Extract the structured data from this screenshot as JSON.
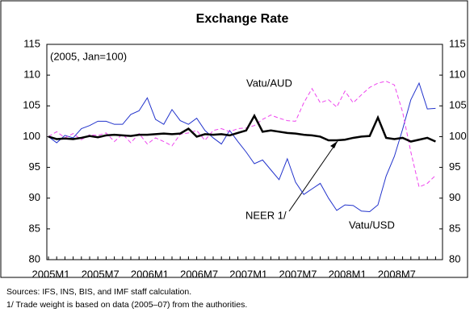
{
  "chart_data": {
    "type": "line",
    "title": "Exchange Rate",
    "subtitle": "(2005, Jan=100)",
    "categories": [
      "2005M1",
      null,
      null,
      null,
      null,
      null,
      "2005M7",
      null,
      null,
      null,
      null,
      null,
      "2006M1",
      null,
      null,
      null,
      null,
      null,
      "2006M7",
      null,
      null,
      null,
      null,
      null,
      "2007M1",
      null,
      null,
      null,
      null,
      null,
      "2007M7",
      null,
      null,
      null,
      null,
      null,
      "2008M1",
      null,
      null,
      null,
      null,
      null,
      "2008M7",
      null,
      null,
      null,
      null,
      null
    ],
    "series": [
      {
        "name": "Vatu/USD",
        "color": "#2233cc",
        "dash": false,
        "width": 1,
        "values": [
          100,
          99,
          100.2,
          99.8,
          101.3,
          101.8,
          102.5,
          102.5,
          102,
          102,
          103.6,
          104.2,
          106.3,
          102.8,
          102,
          104.4,
          102.6,
          102,
          103,
          101,
          99.8,
          98.8,
          101,
          99.2,
          97.5,
          95.6,
          96.2,
          94.6,
          93,
          96.4,
          92.6,
          90.6,
          91.5,
          92.4,
          90,
          88,
          88.9,
          88.8,
          87.9,
          87.8,
          88.9,
          93.6,
          96.8,
          101.2,
          106,
          108.7,
          104.5,
          104.6
        ]
      },
      {
        "name": "Vatu/AUD",
        "color": "#ee44ee",
        "dash": true,
        "width": 1,
        "values": [
          100,
          100.8,
          99.8,
          100.5,
          99.5,
          100.3,
          100.2,
          100.6,
          99.2,
          100.4,
          99,
          100.5,
          98.8,
          99.8,
          99.2,
          98.5,
          100.4,
          100.6,
          101,
          99.4,
          101,
          101.3,
          100.8,
          101.3,
          101.4,
          101.8,
          102.8,
          103.5,
          103,
          102.6,
          102.5,
          105.5,
          107.8,
          105.5,
          106,
          104.8,
          107.4,
          105.5,
          106.8,
          108,
          108.7,
          109,
          108.4,
          104,
          97.5,
          91.8,
          92.4,
          93.7
        ]
      },
      {
        "name": "NEER 1/",
        "color": "#000000",
        "dash": false,
        "width": 2.5,
        "values": [
          100,
          99.6,
          99.7,
          99.6,
          99.8,
          100.1,
          99.9,
          100.2,
          100.3,
          100.2,
          100.1,
          100.3,
          100.3,
          100.4,
          100.5,
          100.4,
          100.5,
          101.3,
          100,
          100.4,
          100.3,
          100.4,
          100.2,
          100.6,
          101,
          103.4,
          100.8,
          101,
          100.8,
          100.6,
          100.5,
          100.3,
          100.2,
          100,
          99.4,
          99.4,
          99.5,
          99.8,
          100,
          100.1,
          103.1,
          99.8,
          99.6,
          99.8,
          99.2,
          99.5,
          99.8,
          99.2
        ]
      }
    ],
    "ylim": [
      80,
      115
    ],
    "yticks": [
      80,
      85,
      90,
      95,
      100,
      105,
      110,
      115
    ],
    "y2lim": [
      80,
      115
    ],
    "y2ticks": [
      80,
      85,
      90,
      95,
      100,
      105,
      110,
      115
    ],
    "notes": [
      "Sources: IFS, INS, BIS, and IMF staff calculation.",
      "1/ Trade weight is based on data (2005–07) from the authorities."
    ]
  }
}
